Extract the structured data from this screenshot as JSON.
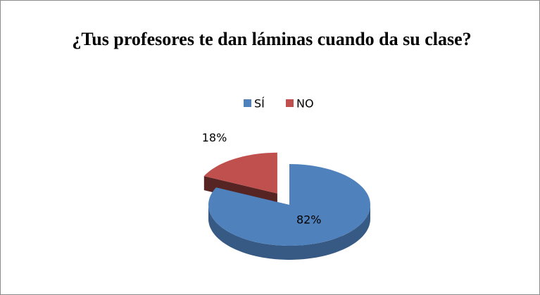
{
  "chart_data": {
    "type": "pie",
    "title": "¿Tus profesores te dan láminas cuando da su clase?",
    "categories": [
      "SÍ",
      "NO"
    ],
    "values": [
      82,
      18
    ],
    "value_labels": [
      "82%",
      "18%"
    ],
    "colors": [
      "#4f81bd",
      "#c0504d"
    ],
    "legend": "top"
  }
}
